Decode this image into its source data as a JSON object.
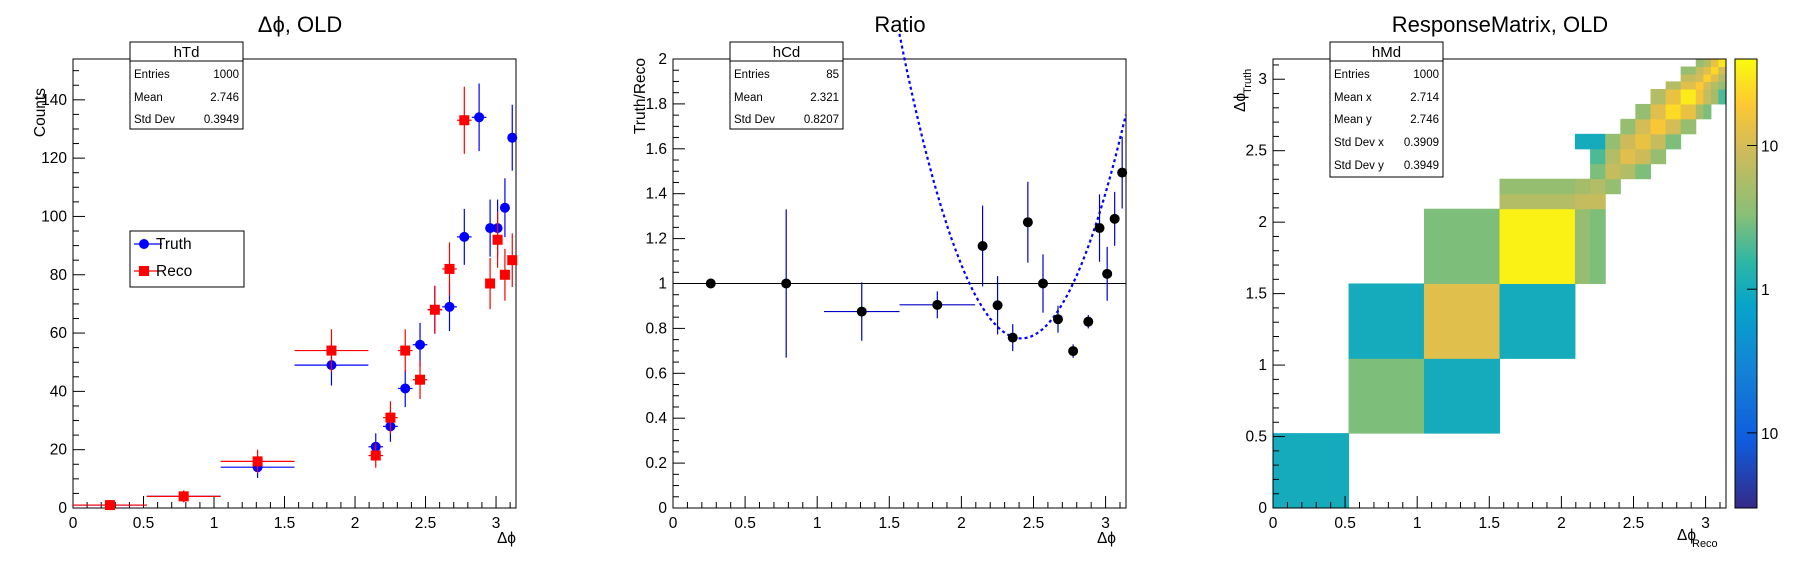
{
  "chart_data": [
    {
      "type": "scatter",
      "title": "Δϕ, OLD",
      "xlabel": "Δϕ",
      "ylabel": "Counts",
      "xlim": [
        0,
        3.14159
      ],
      "ylim": [
        0,
        154
      ],
      "xticks": [
        "0",
        "0.5",
        "1",
        "1.5",
        "2",
        "2.5",
        "3"
      ],
      "yticks": [
        "0",
        "20",
        "40",
        "60",
        "80",
        "100",
        "120",
        "140"
      ],
      "stats": {
        "name": "hTd",
        "rows": [
          [
            "Entries",
            "1000"
          ],
          [
            "Mean",
            "2.746"
          ],
          [
            "Std Dev",
            "0.3949"
          ]
        ]
      },
      "legend": {
        "position": "left-middle",
        "entries": [
          "Truth",
          "Reco"
        ]
      },
      "series": [
        {
          "name": "Truth",
          "color": "#0000ff",
          "marker": "circle",
          "points": [
            {
              "x": 0.262,
              "xerr": 0.262,
              "y": 1,
              "yerr": 1
            },
            {
              "x": 0.785,
              "xerr": 0.262,
              "y": 4,
              "yerr": 2
            },
            {
              "x": 1.309,
              "xerr": 0.262,
              "y": 14,
              "yerr": 3.7
            },
            {
              "x": 1.833,
              "xerr": 0.262,
              "y": 49,
              "yerr": 7
            },
            {
              "x": 2.147,
              "xerr": 0.052,
              "y": 21,
              "yerr": 4.6
            },
            {
              "x": 2.251,
              "xerr": 0.052,
              "y": 28,
              "yerr": 5.3
            },
            {
              "x": 2.356,
              "xerr": 0.052,
              "y": 41,
              "yerr": 6.4
            },
            {
              "x": 2.461,
              "xerr": 0.052,
              "y": 56,
              "yerr": 7.5
            },
            {
              "x": 2.566,
              "xerr": 0.052,
              "y": 68,
              "yerr": 8.2
            },
            {
              "x": 2.67,
              "xerr": 0.052,
              "y": 69,
              "yerr": 8.3
            },
            {
              "x": 2.775,
              "xerr": 0.052,
              "y": 93,
              "yerr": 9.6
            },
            {
              "x": 2.88,
              "xerr": 0.052,
              "y": 134,
              "yerr": 11.6
            },
            {
              "x": 2.958,
              "xerr": 0.026,
              "y": 96,
              "yerr": 9.8
            },
            {
              "x": 3.011,
              "xerr": 0.026,
              "y": 96,
              "yerr": 9.8
            },
            {
              "x": 3.063,
              "xerr": 0.026,
              "y": 103,
              "yerr": 10.1
            },
            {
              "x": 3.115,
              "xerr": 0.026,
              "y": 127,
              "yerr": 11.3
            }
          ]
        },
        {
          "name": "Reco",
          "color": "#ff0000",
          "marker": "square",
          "points": [
            {
              "x": 0.262,
              "xerr": 0.262,
              "y": 1,
              "yerr": 1
            },
            {
              "x": 0.785,
              "xerr": 0.262,
              "y": 4,
              "yerr": 2
            },
            {
              "x": 1.309,
              "xerr": 0.262,
              "y": 16,
              "yerr": 4
            },
            {
              "x": 1.833,
              "xerr": 0.262,
              "y": 54,
              "yerr": 7.3
            },
            {
              "x": 2.147,
              "xerr": 0.052,
              "y": 18,
              "yerr": 4.2
            },
            {
              "x": 2.251,
              "xerr": 0.052,
              "y": 31,
              "yerr": 5.6
            },
            {
              "x": 2.356,
              "xerr": 0.052,
              "y": 54,
              "yerr": 7.3
            },
            {
              "x": 2.461,
              "xerr": 0.052,
              "y": 44,
              "yerr": 6.6
            },
            {
              "x": 2.566,
              "xerr": 0.052,
              "y": 68,
              "yerr": 8.2
            },
            {
              "x": 2.67,
              "xerr": 0.052,
              "y": 82,
              "yerr": 9.1
            },
            {
              "x": 2.775,
              "xerr": 0.052,
              "y": 133,
              "yerr": 11.5
            },
            {
              "x": 2.958,
              "xerr": 0.026,
              "y": 77,
              "yerr": 8.8
            },
            {
              "x": 3.011,
              "xerr": 0.026,
              "y": 92,
              "yerr": 9.6
            },
            {
              "x": 3.063,
              "xerr": 0.026,
              "y": 80,
              "yerr": 8.9
            },
            {
              "x": 3.115,
              "xerr": 0.026,
              "y": 85,
              "yerr": 9.2
            }
          ]
        }
      ]
    },
    {
      "type": "scatter",
      "title": "Ratio",
      "xlabel": "Δϕ",
      "ylabel": "Truth/Reco",
      "xlim": [
        0,
        3.14159
      ],
      "ylim": [
        0,
        2
      ],
      "xticks": [
        "0",
        "0.5",
        "1",
        "1.5",
        "2",
        "2.5",
        "3"
      ],
      "yticks": [
        "0",
        "0.2",
        "0.4",
        "0.6",
        "0.8",
        "1",
        "1.2",
        "1.4",
        "1.6",
        "1.8",
        "2"
      ],
      "stats": {
        "name": "hCd",
        "rows": [
          [
            "Entries",
            "85"
          ],
          [
            "Mean",
            "2.321"
          ],
          [
            "Std Dev",
            "0.8207"
          ]
        ]
      },
      "reference_line": 1,
      "fit": {
        "color": "#0000ff",
        "style": "dotted",
        "formula_coeffs": [
          0.7553,
          2.4155,
          1.8974
        ],
        "xrange": [
          1.57,
          3.14
        ]
      },
      "series": [
        {
          "name": "",
          "color": "#000000",
          "marker": "circle",
          "points": [
            {
              "x": 0.262,
              "xerr": 0.0,
              "y": 1.0,
              "yerr": 0.0
            },
            {
              "x": 0.785,
              "xerr": 0.0,
              "y": 1.0,
              "yerr": 0.33
            },
            {
              "x": 1.309,
              "xerr": 0.262,
              "y": 0.875,
              "yerr": 0.13
            },
            {
              "x": 1.833,
              "xerr": 0.262,
              "y": 0.905,
              "yerr": 0.06
            },
            {
              "x": 2.147,
              "xerr": 0.0,
              "y": 1.167,
              "yerr": 0.18
            },
            {
              "x": 2.251,
              "xerr": 0.0,
              "y": 0.903,
              "yerr": 0.13
            },
            {
              "x": 2.356,
              "xerr": 0.0,
              "y": 0.759,
              "yerr": 0.06
            },
            {
              "x": 2.461,
              "xerr": 0.0,
              "y": 1.273,
              "yerr": 0.18
            },
            {
              "x": 2.566,
              "xerr": 0.0,
              "y": 1.0,
              "yerr": 0.13
            },
            {
              "x": 2.67,
              "xerr": 0.0,
              "y": 0.841,
              "yerr": 0.06
            },
            {
              "x": 2.775,
              "xerr": 0.0,
              "y": 0.699,
              "yerr": 0.03
            },
            {
              "x": 2.88,
              "xerr": 0.0,
              "y": 0.83,
              "yerr": 0.03
            },
            {
              "x": 2.958,
              "xerr": 0.0,
              "y": 1.247,
              "yerr": 0.15
            },
            {
              "x": 3.011,
              "xerr": 0.0,
              "y": 1.043,
              "yerr": 0.12
            },
            {
              "x": 3.063,
              "xerr": 0.0,
              "y": 1.288,
              "yerr": 0.12
            },
            {
              "x": 3.115,
              "xerr": 0.0,
              "y": 1.494,
              "yerr": 0.16
            }
          ]
        }
      ]
    },
    {
      "type": "heatmap",
      "title": "ResponseMatrix, OLD",
      "xlabel": "Δϕ",
      "xlabel_sub": "Reco",
      "ylabel": "Δϕ",
      "ylabel_sub": "Truth",
      "xlim": [
        0,
        3.14159
      ],
      "ylim": [
        0,
        3.14159
      ],
      "xticks": [
        "0",
        "0.5",
        "1",
        "1.5",
        "2",
        "2.5",
        "3"
      ],
      "yticks": [
        "0",
        "0.5",
        "1",
        "1.5",
        "2",
        "2.5",
        "3"
      ],
      "log_z": true,
      "zticks": [
        "10",
        "1",
        "10"
      ],
      "stats": {
        "name": "hMd",
        "rows": [
          [
            "Entries",
            "1000"
          ],
          [
            "Mean x",
            "2.714"
          ],
          [
            "Mean y",
            "2.746"
          ],
          [
            "Std Dev x",
            "0.3909"
          ],
          [
            "Std Dev y",
            "0.3949"
          ]
        ]
      },
      "cells": [
        {
          "x0": 0.0,
          "x1": 0.524,
          "y0": 0.0,
          "y1": 0.524,
          "z": 1
        },
        {
          "x0": 0.524,
          "x1": 1.047,
          "y0": 0.524,
          "y1": 1.047,
          "z": 3
        },
        {
          "x0": 1.047,
          "x1": 1.571,
          "y0": 0.524,
          "y1": 1.047,
          "z": 1
        },
        {
          "x0": 0.524,
          "x1": 1.047,
          "y0": 1.047,
          "y1": 1.571,
          "z": 1
        },
        {
          "x0": 1.047,
          "x1": 1.571,
          "y0": 1.047,
          "y1": 1.571,
          "z": 12
        },
        {
          "x0": 1.571,
          "x1": 2.094,
          "y0": 1.047,
          "y1": 1.571,
          "z": 1
        },
        {
          "x0": 1.047,
          "x1": 1.571,
          "y0": 1.571,
          "y1": 2.094,
          "z": 3
        },
        {
          "x0": 1.571,
          "x1": 2.094,
          "y0": 1.571,
          "y1": 2.094,
          "z": 35
        },
        {
          "x0": 2.094,
          "x1": 2.199,
          "y0": 1.571,
          "y1": 2.094,
          "z": 4
        },
        {
          "x0": 2.199,
          "x1": 2.304,
          "y0": 1.571,
          "y1": 2.094,
          "z": 3
        },
        {
          "x0": 1.571,
          "x1": 2.094,
          "y0": 2.094,
          "y1": 2.199,
          "z": 6
        },
        {
          "x0": 2.094,
          "x1": 2.199,
          "y0": 2.094,
          "y1": 2.199,
          "z": 8
        },
        {
          "x0": 2.199,
          "x1": 2.304,
          "y0": 2.094,
          "y1": 2.199,
          "z": 8
        },
        {
          "x0": 1.571,
          "x1": 2.094,
          "y0": 2.199,
          "y1": 2.304,
          "z": 4
        },
        {
          "x0": 2.094,
          "x1": 2.199,
          "y0": 2.199,
          "y1": 2.304,
          "z": 5
        },
        {
          "x0": 2.199,
          "x1": 2.304,
          "y0": 2.199,
          "y1": 2.304,
          "z": 6
        },
        {
          "x0": 2.304,
          "x1": 2.409,
          "y0": 2.199,
          "y1": 2.304,
          "z": 4
        },
        {
          "x0": 2.199,
          "x1": 2.304,
          "y0": 2.304,
          "y1": 2.409,
          "z": 3
        },
        {
          "x0": 2.304,
          "x1": 2.409,
          "y0": 2.304,
          "y1": 2.409,
          "z": 8
        },
        {
          "x0": 2.409,
          "x1": 2.513,
          "y0": 2.304,
          "y1": 2.409,
          "z": 6
        },
        {
          "x0": 2.513,
          "x1": 2.618,
          "y0": 2.304,
          "y1": 2.409,
          "z": 3
        },
        {
          "x0": 2.199,
          "x1": 2.304,
          "y0": 2.409,
          "y1": 2.513,
          "z": 2
        },
        {
          "x0": 2.304,
          "x1": 2.409,
          "y0": 2.409,
          "y1": 2.513,
          "z": 6
        },
        {
          "x0": 2.409,
          "x1": 2.513,
          "y0": 2.409,
          "y1": 2.513,
          "z": 12
        },
        {
          "x0": 2.513,
          "x1": 2.618,
          "y0": 2.409,
          "y1": 2.513,
          "z": 9
        },
        {
          "x0": 2.618,
          "x1": 2.723,
          "y0": 2.409,
          "y1": 2.513,
          "z": 4
        },
        {
          "x0": 2.094,
          "x1": 2.199,
          "y0": 2.513,
          "y1": 2.618,
          "z": 1
        },
        {
          "x0": 2.199,
          "x1": 2.304,
          "y0": 2.513,
          "y1": 2.618,
          "z": 1
        },
        {
          "x0": 2.304,
          "x1": 2.409,
          "y0": 2.513,
          "y1": 2.618,
          "z": 4
        },
        {
          "x0": 2.409,
          "x1": 2.513,
          "y0": 2.513,
          "y1": 2.618,
          "z": 9
        },
        {
          "x0": 2.513,
          "x1": 2.618,
          "y0": 2.513,
          "y1": 2.618,
          "z": 14
        },
        {
          "x0": 2.618,
          "x1": 2.723,
          "y0": 2.513,
          "y1": 2.618,
          "z": 8
        },
        {
          "x0": 2.723,
          "x1": 2.827,
          "y0": 2.513,
          "y1": 2.618,
          "z": 3
        },
        {
          "x0": 2.409,
          "x1": 2.513,
          "y0": 2.618,
          "y1": 2.723,
          "z": 4
        },
        {
          "x0": 2.513,
          "x1": 2.618,
          "y0": 2.618,
          "y1": 2.723,
          "z": 10
        },
        {
          "x0": 2.618,
          "x1": 2.723,
          "y0": 2.618,
          "y1": 2.723,
          "z": 18
        },
        {
          "x0": 2.723,
          "x1": 2.827,
          "y0": 2.618,
          "y1": 2.723,
          "z": 10
        },
        {
          "x0": 2.827,
          "x1": 2.932,
          "y0": 2.618,
          "y1": 2.723,
          "z": 4
        },
        {
          "x0": 2.513,
          "x1": 2.618,
          "y0": 2.723,
          "y1": 2.827,
          "z": 4
        },
        {
          "x0": 2.618,
          "x1": 2.723,
          "y0": 2.723,
          "y1": 2.827,
          "z": 12
        },
        {
          "x0": 2.723,
          "x1": 2.827,
          "y0": 2.723,
          "y1": 2.827,
          "z": 25
        },
        {
          "x0": 2.827,
          "x1": 2.932,
          "y0": 2.723,
          "y1": 2.827,
          "z": 14
        },
        {
          "x0": 2.932,
          "x1": 2.985,
          "y0": 2.723,
          "y1": 2.827,
          "z": 5
        },
        {
          "x0": 2.985,
          "x1": 3.037,
          "y0": 2.723,
          "y1": 2.827,
          "z": 3
        },
        {
          "x0": 2.618,
          "x1": 2.723,
          "y0": 2.827,
          "y1": 2.932,
          "z": 6
        },
        {
          "x0": 2.723,
          "x1": 2.827,
          "y0": 2.827,
          "y1": 2.932,
          "z": 14
        },
        {
          "x0": 2.827,
          "x1": 2.932,
          "y0": 2.827,
          "y1": 2.932,
          "z": 32
        },
        {
          "x0": 2.932,
          "x1": 2.985,
          "y0": 2.827,
          "y1": 2.932,
          "z": 16
        },
        {
          "x0": 2.985,
          "x1": 3.037,
          "y0": 2.827,
          "y1": 2.932,
          "z": 8
        },
        {
          "x0": 3.037,
          "x1": 3.089,
          "y0": 2.827,
          "y1": 2.932,
          "z": 5
        },
        {
          "x0": 3.089,
          "x1": 3.142,
          "y0": 2.827,
          "y1": 2.932,
          "z": 2
        },
        {
          "x0": 2.723,
          "x1": 2.827,
          "y0": 2.932,
          "y1": 2.985,
          "z": 6
        },
        {
          "x0": 2.827,
          "x1": 2.932,
          "y0": 2.932,
          "y1": 2.985,
          "z": 12
        },
        {
          "x0": 2.932,
          "x1": 2.985,
          "y0": 2.932,
          "y1": 2.985,
          "z": 20
        },
        {
          "x0": 2.985,
          "x1": 3.037,
          "y0": 2.932,
          "y1": 2.985,
          "z": 10
        },
        {
          "x0": 3.037,
          "x1": 3.089,
          "y0": 2.932,
          "y1": 2.985,
          "z": 6
        },
        {
          "x0": 3.089,
          "x1": 3.142,
          "y0": 2.932,
          "y1": 2.985,
          "z": 4
        },
        {
          "x0": 2.827,
          "x1": 2.932,
          "y0": 2.985,
          "y1": 3.037,
          "z": 8
        },
        {
          "x0": 2.932,
          "x1": 2.985,
          "y0": 2.985,
          "y1": 3.037,
          "z": 10
        },
        {
          "x0": 2.985,
          "x1": 3.037,
          "y0": 2.985,
          "y1": 3.037,
          "z": 22
        },
        {
          "x0": 3.037,
          "x1": 3.089,
          "y0": 2.985,
          "y1": 3.037,
          "z": 12
        },
        {
          "x0": 3.089,
          "x1": 3.142,
          "y0": 2.985,
          "y1": 3.037,
          "z": 6
        },
        {
          "x0": 2.827,
          "x1": 2.932,
          "y0": 3.037,
          "y1": 3.089,
          "z": 4
        },
        {
          "x0": 2.932,
          "x1": 2.985,
          "y0": 3.037,
          "y1": 3.089,
          "z": 8
        },
        {
          "x0": 2.985,
          "x1": 3.037,
          "y0": 3.037,
          "y1": 3.089,
          "z": 12
        },
        {
          "x0": 3.037,
          "x1": 3.089,
          "y0": 3.037,
          "y1": 3.089,
          "z": 24
        },
        {
          "x0": 3.089,
          "x1": 3.142,
          "y0": 3.037,
          "y1": 3.089,
          "z": 10
        },
        {
          "x0": 2.932,
          "x1": 2.985,
          "y0": 3.089,
          "y1": 3.142,
          "z": 4
        },
        {
          "x0": 2.985,
          "x1": 3.037,
          "y0": 3.089,
          "y1": 3.142,
          "z": 6
        },
        {
          "x0": 3.037,
          "x1": 3.089,
          "y0": 3.089,
          "y1": 3.142,
          "z": 14
        },
        {
          "x0": 3.089,
          "x1": 3.142,
          "y0": 3.089,
          "y1": 3.142,
          "z": 30
        }
      ]
    }
  ]
}
